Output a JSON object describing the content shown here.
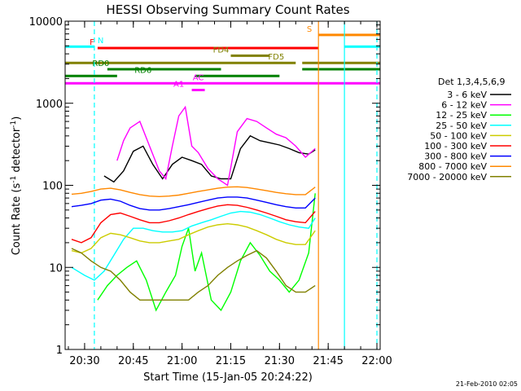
{
  "chart_data": {
    "type": "line",
    "title": "HESSI Observing Summary Count Rates",
    "xlabel": "Start Time (15-Jan-05 20:24:22)",
    "ylabel_main": "Count Rate (s",
    "ylabel_sup1": "-1",
    "ylabel_mid": " detector",
    "ylabel_sup2": "-1",
    "ylabel_end": ")",
    "y_scale": "log",
    "ylim": [
      1,
      10000
    ],
    "xlim": [
      "20:24",
      "22:01"
    ],
    "x_ticks": [
      "20:30",
      "20:45",
      "21:00",
      "21:15",
      "21:30",
      "21:45",
      "22:00"
    ],
    "y_ticks": [
      "1",
      "10",
      "100",
      "1000",
      "10000"
    ],
    "legend_title": "Det 1,3,4,5,6,9",
    "legend_placement": "right",
    "footer": "21-Feb-2010 02:05",
    "series": [
      {
        "name": "3 - 6 keV",
        "color": "#000000",
        "points": [
          [
            "20:36",
            130
          ],
          [
            "20:39",
            110
          ],
          [
            "20:42",
            150
          ],
          [
            "20:45",
            260
          ],
          [
            "20:48",
            300
          ],
          [
            "20:51",
            180
          ],
          [
            "20:54",
            120
          ],
          [
            "20:57",
            180
          ],
          [
            "21:00",
            220
          ],
          [
            "21:03",
            200
          ],
          [
            "21:06",
            180
          ],
          [
            "21:09",
            130
          ],
          [
            "21:12",
            120
          ],
          [
            "21:15",
            120
          ],
          [
            "21:18",
            280
          ],
          [
            "21:21",
            400
          ],
          [
            "21:24",
            350
          ],
          [
            "21:27",
            330
          ],
          [
            "21:30",
            310
          ],
          [
            "21:33",
            280
          ],
          [
            "21:36",
            250
          ],
          [
            "21:39",
            240
          ],
          [
            "21:41",
            270
          ]
        ]
      },
      {
        "name": "6 - 12 keV",
        "color": "#ff00ff",
        "points": [
          [
            "20:40",
            200
          ],
          [
            "20:42",
            350
          ],
          [
            "20:44",
            500
          ],
          [
            "20:47",
            600
          ],
          [
            "20:50",
            300
          ],
          [
            "20:53",
            150
          ],
          [
            "20:55",
            120
          ],
          [
            "20:57",
            300
          ],
          [
            "20:59",
            700
          ],
          [
            "21:01",
            900
          ],
          [
            "21:03",
            300
          ],
          [
            "21:05",
            250
          ],
          [
            "21:08",
            160
          ],
          [
            "21:11",
            120
          ],
          [
            "21:14",
            100
          ],
          [
            "21:17",
            450
          ],
          [
            "21:20",
            650
          ],
          [
            "21:23",
            600
          ],
          [
            "21:26",
            500
          ],
          [
            "21:29",
            420
          ],
          [
            "21:32",
            380
          ],
          [
            "21:35",
            300
          ],
          [
            "21:38",
            220
          ],
          [
            "21:41",
            280
          ]
        ]
      },
      {
        "name": "12 - 25 keV",
        "color": "#00ff00",
        "points": [
          [
            "20:34",
            4
          ],
          [
            "20:37",
            6
          ],
          [
            "20:40",
            8
          ],
          [
            "20:43",
            10
          ],
          [
            "20:46",
            12
          ],
          [
            "20:49",
            7
          ],
          [
            "20:52",
            3
          ],
          [
            "20:55",
            5
          ],
          [
            "20:58",
            8
          ],
          [
            "21:00",
            18
          ],
          [
            "21:02",
            30
          ],
          [
            "21:04",
            9
          ],
          [
            "21:06",
            15
          ],
          [
            "21:09",
            4
          ],
          [
            "21:12",
            3
          ],
          [
            "21:15",
            5
          ],
          [
            "21:18",
            12
          ],
          [
            "21:21",
            20
          ],
          [
            "21:24",
            14
          ],
          [
            "21:27",
            9
          ],
          [
            "21:30",
            7
          ],
          [
            "21:33",
            5
          ],
          [
            "21:36",
            7
          ],
          [
            "21:39",
            15
          ],
          [
            "21:41",
            80
          ]
        ]
      },
      {
        "name": "25 - 50 keV",
        "color": "#00ffff",
        "points": [
          [
            "20:26",
            10
          ],
          [
            "20:30",
            8
          ],
          [
            "20:33",
            7
          ],
          [
            "20:36",
            9
          ],
          [
            "20:39",
            14
          ],
          [
            "20:42",
            22
          ],
          [
            "20:45",
            30
          ],
          [
            "20:48",
            30
          ],
          [
            "20:51",
            28
          ],
          [
            "20:54",
            27
          ],
          [
            "20:57",
            27
          ],
          [
            "21:00",
            28
          ],
          [
            "21:03",
            32
          ],
          [
            "21:06",
            35
          ],
          [
            "21:09",
            38
          ],
          [
            "21:12",
            42
          ],
          [
            "21:15",
            46
          ],
          [
            "21:18",
            48
          ],
          [
            "21:21",
            47
          ],
          [
            "21:24",
            44
          ],
          [
            "21:27",
            40
          ],
          [
            "21:30",
            36
          ],
          [
            "21:33",
            33
          ],
          [
            "21:36",
            31
          ],
          [
            "21:39",
            30
          ],
          [
            "21:41",
            40
          ]
        ]
      },
      {
        "name": "50 - 100 keV",
        "color": "#cccc00",
        "points": [
          [
            "20:26",
            16
          ],
          [
            "20:29",
            15
          ],
          [
            "20:32",
            17
          ],
          [
            "20:35",
            23
          ],
          [
            "20:38",
            26
          ],
          [
            "20:41",
            25
          ],
          [
            "20:44",
            23
          ],
          [
            "20:47",
            21
          ],
          [
            "20:50",
            20
          ],
          [
            "20:53",
            20
          ],
          [
            "20:56",
            21
          ],
          [
            "20:59",
            22
          ],
          [
            "21:02",
            25
          ],
          [
            "21:05",
            28
          ],
          [
            "21:08",
            31
          ],
          [
            "21:11",
            33
          ],
          [
            "21:14",
            34
          ],
          [
            "21:17",
            33
          ],
          [
            "21:20",
            31
          ],
          [
            "21:23",
            28
          ],
          [
            "21:26",
            25
          ],
          [
            "21:29",
            22
          ],
          [
            "21:32",
            20
          ],
          [
            "21:35",
            19
          ],
          [
            "21:38",
            19
          ],
          [
            "21:41",
            28
          ]
        ]
      },
      {
        "name": "100 - 300 keV",
        "color": "#ff0000",
        "points": [
          [
            "20:26",
            22
          ],
          [
            "20:29",
            20
          ],
          [
            "20:32",
            23
          ],
          [
            "20:35",
            35
          ],
          [
            "20:38",
            44
          ],
          [
            "20:41",
            46
          ],
          [
            "20:44",
            42
          ],
          [
            "20:47",
            38
          ],
          [
            "20:50",
            35
          ],
          [
            "20:53",
            35
          ],
          [
            "20:56",
            37
          ],
          [
            "20:59",
            40
          ],
          [
            "21:02",
            44
          ],
          [
            "21:05",
            48
          ],
          [
            "21:08",
            52
          ],
          [
            "21:11",
            56
          ],
          [
            "21:14",
            58
          ],
          [
            "21:17",
            57
          ],
          [
            "21:20",
            54
          ],
          [
            "21:23",
            50
          ],
          [
            "21:26",
            46
          ],
          [
            "21:29",
            42
          ],
          [
            "21:32",
            38
          ],
          [
            "21:35",
            36
          ],
          [
            "21:38",
            35
          ],
          [
            "21:41",
            48
          ]
        ]
      },
      {
        "name": "300 - 800 keV",
        "color": "#0000ff",
        "points": [
          [
            "20:26",
            55
          ],
          [
            "20:29",
            57
          ],
          [
            "20:32",
            60
          ],
          [
            "20:35",
            66
          ],
          [
            "20:38",
            68
          ],
          [
            "20:41",
            64
          ],
          [
            "20:44",
            57
          ],
          [
            "20:47",
            52
          ],
          [
            "20:50",
            50
          ],
          [
            "20:53",
            50
          ],
          [
            "20:56",
            52
          ],
          [
            "20:59",
            55
          ],
          [
            "21:02",
            58
          ],
          [
            "21:05",
            62
          ],
          [
            "21:08",
            66
          ],
          [
            "21:11",
            70
          ],
          [
            "21:14",
            72
          ],
          [
            "21:17",
            72
          ],
          [
            "21:20",
            70
          ],
          [
            "21:23",
            66
          ],
          [
            "21:26",
            62
          ],
          [
            "21:29",
            58
          ],
          [
            "21:32",
            55
          ],
          [
            "21:35",
            53
          ],
          [
            "21:38",
            53
          ],
          [
            "21:41",
            70
          ]
        ]
      },
      {
        "name": "800 - 7000 keV",
        "color": "#ff8800",
        "points": [
          [
            "20:26",
            78
          ],
          [
            "20:29",
            80
          ],
          [
            "20:32",
            84
          ],
          [
            "20:35",
            90
          ],
          [
            "20:38",
            92
          ],
          [
            "20:41",
            88
          ],
          [
            "20:44",
            82
          ],
          [
            "20:47",
            77
          ],
          [
            "20:50",
            74
          ],
          [
            "20:53",
            73
          ],
          [
            "20:56",
            74
          ],
          [
            "20:59",
            76
          ],
          [
            "21:02",
            80
          ],
          [
            "21:05",
            84
          ],
          [
            "21:08",
            88
          ],
          [
            "21:11",
            92
          ],
          [
            "21:14",
            95
          ],
          [
            "21:17",
            96
          ],
          [
            "21:20",
            94
          ],
          [
            "21:23",
            90
          ],
          [
            "21:26",
            86
          ],
          [
            "21:29",
            82
          ],
          [
            "21:32",
            79
          ],
          [
            "21:35",
            77
          ],
          [
            "21:38",
            77
          ],
          [
            "21:41",
            95
          ]
        ]
      },
      {
        "name": "7000 - 20000 keV",
        "color": "#808000",
        "points": [
          [
            "20:26",
            17
          ],
          [
            "20:29",
            15
          ],
          [
            "20:32",
            12
          ],
          [
            "20:35",
            10
          ],
          [
            "20:38",
            9
          ],
          [
            "20:41",
            7
          ],
          [
            "20:44",
            5
          ],
          [
            "20:47",
            4
          ],
          [
            "20:50",
            4
          ],
          [
            "20:53",
            4
          ],
          [
            "20:56",
            4
          ],
          [
            "20:59",
            4
          ],
          [
            "21:02",
            4
          ],
          [
            "21:05",
            5
          ],
          [
            "21:08",
            6
          ],
          [
            "21:11",
            8
          ],
          [
            "21:14",
            10
          ],
          [
            "21:17",
            12
          ],
          [
            "21:20",
            14
          ],
          [
            "21:23",
            16
          ],
          [
            "21:26",
            13
          ],
          [
            "21:29",
            9
          ],
          [
            "21:32",
            6
          ],
          [
            "21:35",
            5
          ],
          [
            "21:38",
            5
          ],
          [
            "21:41",
            6
          ]
        ]
      }
    ],
    "vertical_lines": [
      {
        "t": "20:33",
        "color": "#00ffff",
        "dashed": true
      },
      {
        "t": "21:42",
        "color": "#ff8800",
        "dashed": false
      },
      {
        "t": "21:50",
        "color": "#00ffff",
        "dashed": false
      },
      {
        "t": "22:00",
        "color": "#00ffff",
        "dashed": true
      }
    ],
    "flag_bars": [
      {
        "label": "N",
        "color": "#00ffff",
        "level": 4900,
        "segments": [
          [
            "20:24",
            "20:33"
          ],
          [
            "21:50",
            "22:01"
          ]
        ],
        "label_t": "20:34",
        "label_side": "right"
      },
      {
        "label": "S",
        "color": "#ff8800",
        "level": 6800,
        "segments": [
          [
            "21:42",
            "22:01"
          ]
        ],
        "label_t": "21:40",
        "label_side": "left"
      },
      {
        "label": "F",
        "color": "#ff0000",
        "level": 4700,
        "segments": [
          [
            "20:34",
            "21:42"
          ]
        ],
        "label_t": "20:33",
        "label_side": "left"
      },
      {
        "label": "FD4",
        "color": "#808000",
        "level": 3800,
        "segments": [
          [
            "21:15",
            "21:27"
          ]
        ],
        "label_t": "21:12",
        "label_side": "center"
      },
      {
        "label": "FD5",
        "color": "#808000",
        "level": 3100,
        "segments": [
          [
            "20:24",
            "21:35"
          ],
          [
            "21:37",
            "22:01"
          ]
        ],
        "label_t": "21:29",
        "label_side": "center"
      },
      {
        "label": "RD0",
        "color": "#008000",
        "level": 2600,
        "segments": [
          [
            "20:37",
            "21:12"
          ],
          [
            "21:37",
            "22:01"
          ]
        ],
        "label_t": "20:35",
        "label_side": "center"
      },
      {
        "label": "RD6",
        "color": "#008000",
        "level": 2150,
        "segments": [
          [
            "20:24",
            "20:40"
          ],
          [
            "21:04",
            "21:30"
          ]
        ],
        "label_t": "20:48",
        "label_side": "center"
      },
      {
        "label": "AC",
        "color": "#ff00ff",
        "level": 1750,
        "segments": [
          [
            "20:24",
            "22:01"
          ]
        ],
        "label_t": "21:05",
        "label_side": "center"
      },
      {
        "label": "A1",
        "color": "#ff00ff",
        "level": 1450,
        "segments": [
          [
            "21:03",
            "21:07"
          ]
        ],
        "label_t": "20:59",
        "label_side": "center"
      }
    ]
  }
}
